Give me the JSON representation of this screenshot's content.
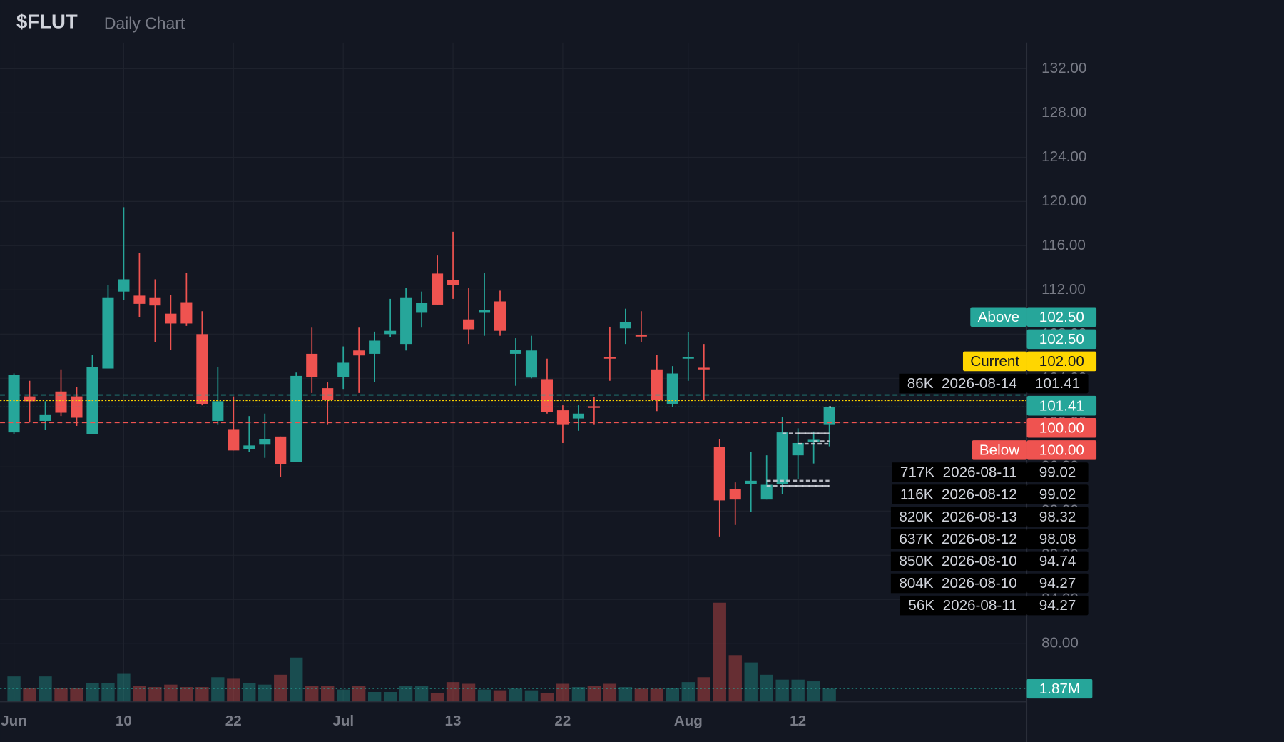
{
  "chart_data": {
    "type": "candlestick",
    "title": "$FLUT",
    "subtitle": "Daily Chart",
    "up_color": "#26a69a",
    "down_color": "#ef5350",
    "categories": [
      "2026-06-01",
      "2026-06-02",
      "2026-06-03",
      "2026-06-04",
      "2026-06-05",
      "2026-06-08",
      "2026-06-09",
      "2026-06-10",
      "2026-06-11",
      "2026-06-12",
      "2026-06-15",
      "2026-06-16",
      "2026-06-17",
      "2026-06-18",
      "2026-06-22",
      "2026-06-23",
      "2026-06-24",
      "2026-06-25",
      "2026-06-26",
      "2026-06-29",
      "2026-06-30",
      "2026-07-01",
      "2026-07-02",
      "2026-07-06",
      "2026-07-07",
      "2026-07-08",
      "2026-07-09",
      "2026-07-10",
      "2026-07-13",
      "2026-07-14",
      "2026-07-15",
      "2026-07-16",
      "2026-07-17",
      "2026-07-20",
      "2026-07-21",
      "2026-07-22",
      "2026-07-23",
      "2026-07-24",
      "2026-07-27",
      "2026-07-28",
      "2026-07-29",
      "2026-07-30",
      "2026-07-31",
      "2026-08-03",
      "2026-08-04",
      "2026-08-05",
      "2026-08-06",
      "2026-08-07",
      "2026-08-10",
      "2026-08-11",
      "2026-08-12",
      "2026-08-13",
      "2026-08-14"
    ],
    "open": [
      99.11,
      102.37,
      100.15,
      102.81,
      102.37,
      98.96,
      104.89,
      111.85,
      111.48,
      111.33,
      109.85,
      110.89,
      108.0,
      100.15,
      99.41,
      97.63,
      98.0,
      98.74,
      96.44,
      106.22,
      103.11,
      104.15,
      106.52,
      106.22,
      108.0,
      107.11,
      109.93,
      113.48,
      112.89,
      109.33,
      109.93,
      110.96,
      106.22,
      104.07,
      103.93,
      101.11,
      100.37,
      101.48,
      105.93,
      108.52,
      107.93,
      104.81,
      101.7,
      105.78,
      104.96,
      97.78,
      94.0,
      94.44,
      93.04,
      94.44,
      97.04,
      98.22,
      99.85
    ],
    "high": [
      104.44,
      103.78,
      101.93,
      104.81,
      103.19,
      106.15,
      112.44,
      119.48,
      115.33,
      112.96,
      111.56,
      113.56,
      110.07,
      105.04,
      102.37,
      100.59,
      100.81,
      98.74,
      104.52,
      108.59,
      103.63,
      106.89,
      108.59,
      108.22,
      111.19,
      112.15,
      111.85,
      115.11,
      117.26,
      112.15,
      113.56,
      111.93,
      107.63,
      107.85,
      105.78,
      101.56,
      101.56,
      102.3,
      108.67,
      110.3,
      110.07,
      106.15,
      105.11,
      108.15,
      107.11,
      98.52,
      94.59,
      97.33,
      97.04,
      100.52,
      99.48,
      99.19,
      101.48
    ],
    "low": [
      98.96,
      100.07,
      99.33,
      100.59,
      99.7,
      98.96,
      104.89,
      111.11,
      109.56,
      107.26,
      106.59,
      108.74,
      101.56,
      99.85,
      97.48,
      97.33,
      96.81,
      95.11,
      96.44,
      102.67,
      99.85,
      103.04,
      102.67,
      103.63,
      107.7,
      106.52,
      108.59,
      110.67,
      111.19,
      107.11,
      107.85,
      107.85,
      103.33,
      104.0,
      100.81,
      98.15,
      99.26,
      99.85,
      103.78,
      107.11,
      107.26,
      101.04,
      101.41,
      103.78,
      102.0,
      89.7,
      90.74,
      91.93,
      93.04,
      93.56,
      94.89,
      96.3,
      97.85
    ],
    "close": [
      104.3,
      101.93,
      100.74,
      100.89,
      100.44,
      105.04,
      111.33,
      112.96,
      110.74,
      110.59,
      108.96,
      108.96,
      101.7,
      101.93,
      97.48,
      97.93,
      98.52,
      96.22,
      104.22,
      104.15,
      102.07,
      105.41,
      106.07,
      107.41,
      108.3,
      111.33,
      110.81,
      110.67,
      112.44,
      108.44,
      110.15,
      108.3,
      106.59,
      106.52,
      100.96,
      99.85,
      100.81,
      101.33,
      105.78,
      109.11,
      107.78,
      102.07,
      104.44,
      105.93,
      104.81,
      92.96,
      93.04,
      94.74,
      94.37,
      99.11,
      98.15,
      98.44,
      101.41
    ],
    "volume": [
      3620000,
      1990000,
      3620000,
      1990000,
      1990000,
      2690000,
      2690000,
      4090000,
      2220000,
      2100000,
      2450000,
      2100000,
      2100000,
      3510000,
      3390000,
      2690000,
      2450000,
      3860000,
      6310000,
      2220000,
      2220000,
      1750000,
      2220000,
      1400000,
      1400000,
      2220000,
      2220000,
      1290000,
      2810000,
      2570000,
      1750000,
      1640000,
      1870000,
      1640000,
      1290000,
      2570000,
      2100000,
      2220000,
      2570000,
      2100000,
      1870000,
      1870000,
      1990000,
      2810000,
      3510000,
      14140000,
      6660000,
      5610000,
      3860000,
      3160000,
      3160000,
      2920000,
      1870000
    ],
    "volume_label": "1.87M",
    "volume_ylim": [
      0,
      16000000
    ],
    "last_close_label": "101.41",
    "ylim": [
      74.74,
      134.37
    ],
    "yticks": [
      {
        "value": 80,
        "label": "80.00"
      },
      {
        "value": 84,
        "label": "84.00"
      },
      {
        "value": 88,
        "label": "88.00"
      },
      {
        "value": 92,
        "label": "92.00"
      },
      {
        "value": 96,
        "label": "96.00"
      },
      {
        "value": 100,
        "label": "100.00"
      },
      {
        "value": 104,
        "label": "104.00"
      },
      {
        "value": 108,
        "label": "108.00"
      },
      {
        "value": 112,
        "label": "112.00"
      },
      {
        "value": 116,
        "label": "116.00"
      },
      {
        "value": 120,
        "label": "120.00"
      },
      {
        "value": 124,
        "label": "124.00"
      },
      {
        "value": 128,
        "label": "128.00"
      },
      {
        "value": 132,
        "label": "132.00"
      }
    ],
    "xticks": [
      {
        "value": "2026-06-01",
        "label": "Jun"
      },
      {
        "value": "2026-06-10",
        "label": "10"
      },
      {
        "value": "2026-06-22",
        "label": "22"
      },
      {
        "value": "2026-07-01",
        "label": "Jul"
      },
      {
        "value": "2026-07-13",
        "label": "13"
      },
      {
        "value": "2026-07-22",
        "label": "22"
      },
      {
        "value": "2026-08-03",
        "label": "Aug"
      },
      {
        "value": "2026-08-12",
        "label": "12"
      }
    ],
    "grid": true,
    "price_lines": [
      {
        "name": "Above",
        "value": 102.5,
        "label": "102.50",
        "color": "#26a69a",
        "style": "dashed"
      },
      {
        "name": "Current",
        "value": 102,
        "label": "102.00",
        "color": "#ffd600",
        "style": "dotted"
      },
      {
        "name": "Below",
        "value": 100,
        "label": "100.00",
        "color": "#ef5350",
        "style": "dashed"
      }
    ],
    "volume_levels": [
      {
        "volume": 86000,
        "volume_label": "86K",
        "date": "2026-08-14",
        "value": 101.41
      },
      {
        "volume": 717000,
        "volume_label": "717K",
        "date": "2026-08-11",
        "value": 99.02
      },
      {
        "volume": 116000,
        "volume_label": "116K",
        "date": "2026-08-12",
        "value": 99.02
      },
      {
        "volume": 820000,
        "volume_label": "820K",
        "date": "2026-08-13",
        "value": 98.32
      },
      {
        "volume": 637000,
        "volume_label": "637K",
        "date": "2026-08-12",
        "value": 98.08
      },
      {
        "volume": 850000,
        "volume_label": "850K",
        "date": "2026-08-10",
        "value": 94.74
      },
      {
        "volume": 804000,
        "volume_label": "804K",
        "date": "2026-08-10",
        "value": 94.27
      },
      {
        "volume": 56000,
        "volume_label": "56K",
        "date": "2026-08-11",
        "value": 94.27
      }
    ]
  }
}
